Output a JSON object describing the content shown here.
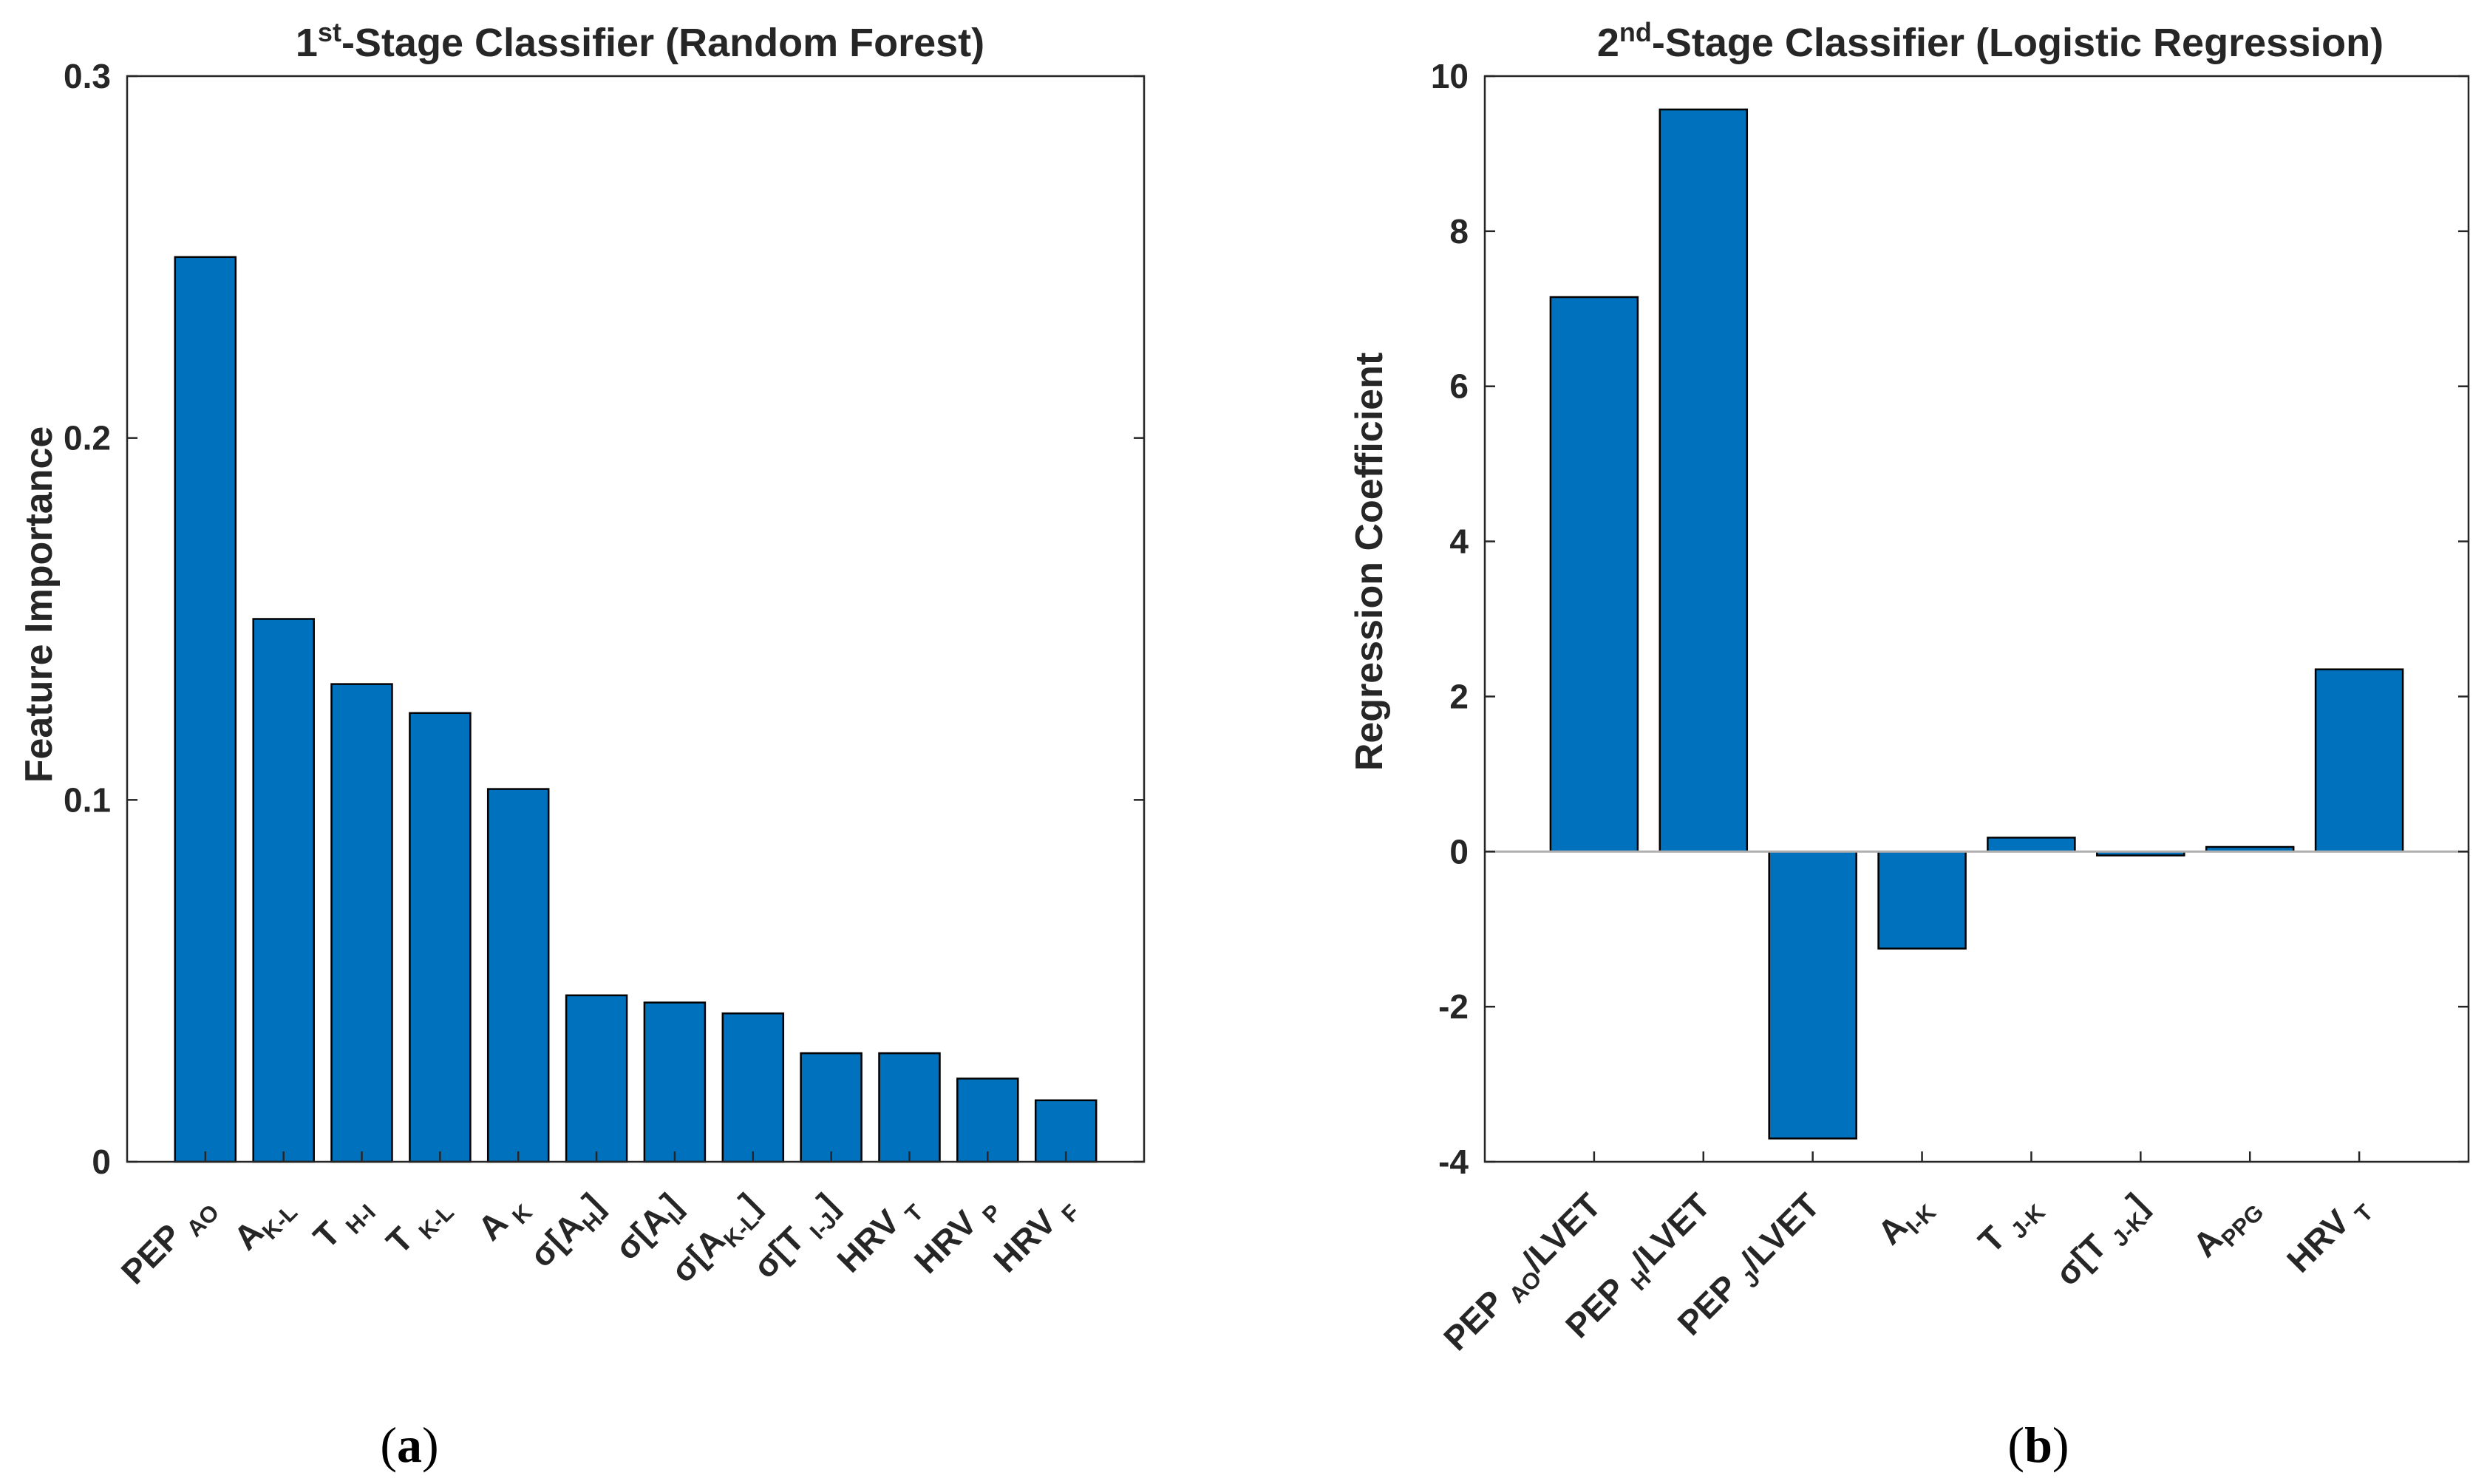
{
  "chart_data": [
    {
      "panel": "a",
      "type": "bar",
      "title": "1st-Stage Classifier (Random Forest)",
      "title_parts": {
        "pre": "1",
        "sup": "st",
        "post": "-Stage Classifier (Random Forest)"
      },
      "xlabel": "",
      "ylabel": "Feature Importance",
      "ylim": [
        0,
        0.3
      ],
      "yticks": [
        "0",
        "0.1",
        "0.2",
        "0.3"
      ],
      "ytick_values": [
        0,
        0.1,
        0.2,
        0.3
      ],
      "grid": false,
      "bar_color": "#0072BD",
      "categories": [
        "PEP AO",
        "A K-L",
        "T H-I",
        "T K-L",
        "A K",
        "σ[A H]",
        "σ[A I]",
        "σ[A K-L]",
        "σ[T I-J]",
        "HRV T",
        "HRV P",
        "HRV F"
      ],
      "category_labels": [
        {
          "main": "PEP ",
          "sub": "AO"
        },
        {
          "main": "A",
          "sub": "K-L"
        },
        {
          "main": "T ",
          "sub": "H-I"
        },
        {
          "main": "T ",
          "sub": "K-L"
        },
        {
          "main": "A ",
          "sub": "K"
        },
        {
          "main": "σ[A",
          "sub": "H",
          "end": "]"
        },
        {
          "main": "σ[A",
          "sub": "I",
          "end": "]"
        },
        {
          "main": "σ[A",
          "sub": "K-L",
          "end": "]"
        },
        {
          "main": "σ[T ",
          "sub": "I-J",
          "end": "]"
        },
        {
          "main": "HRV ",
          "sub": "T"
        },
        {
          "main": "HRV ",
          "sub": "P"
        },
        {
          "main": "HRV ",
          "sub": "F"
        }
      ],
      "values": [
        0.25,
        0.15,
        0.132,
        0.124,
        0.103,
        0.046,
        0.044,
        0.041,
        0.03,
        0.03,
        0.023,
        0.017
      ],
      "caption": "(a)"
    },
    {
      "panel": "b",
      "type": "bar",
      "title": "2nd-Stage Classifier (Logistic Regression)",
      "title_parts": {
        "pre": "2",
        "sup": "nd",
        "post": "-Stage Classifier (Logistic Regression)"
      },
      "xlabel": "",
      "ylabel": "Regression Coefficient",
      "ylim": [
        -4,
        10
      ],
      "yticks": [
        "-4",
        "-2",
        "0",
        "2",
        "4",
        "6",
        "8",
        "10"
      ],
      "ytick_values": [
        -4,
        -2,
        0,
        2,
        4,
        6,
        8,
        10
      ],
      "grid": false,
      "bar_color": "#0072BD",
      "categories": [
        "PEP AO/LVET",
        "PEP H/LVET",
        "PEP J/LVET",
        "A I-K",
        "T J-K",
        "σ[T J-K]",
        "A PPG",
        "HRV T"
      ],
      "category_labels": [
        {
          "main": "PEP ",
          "sub": "AO",
          "end": "/LVET"
        },
        {
          "main": "PEP ",
          "sub": "H",
          "end": "/LVET"
        },
        {
          "main": "PEP ",
          "sub": "J",
          "end": "/LVET"
        },
        {
          "main": "A",
          "sub": "I-K"
        },
        {
          "main": "T ",
          "sub": "J-K"
        },
        {
          "main": "σ[T ",
          "sub": "J-K",
          "end": "]"
        },
        {
          "main": "A",
          "sub": "PPG"
        },
        {
          "main": "HRV ",
          "sub": "T"
        }
      ],
      "values": [
        7.15,
        9.57,
        -3.7,
        -1.25,
        0.18,
        -0.05,
        0.06,
        2.35
      ],
      "caption": "(b)"
    }
  ]
}
